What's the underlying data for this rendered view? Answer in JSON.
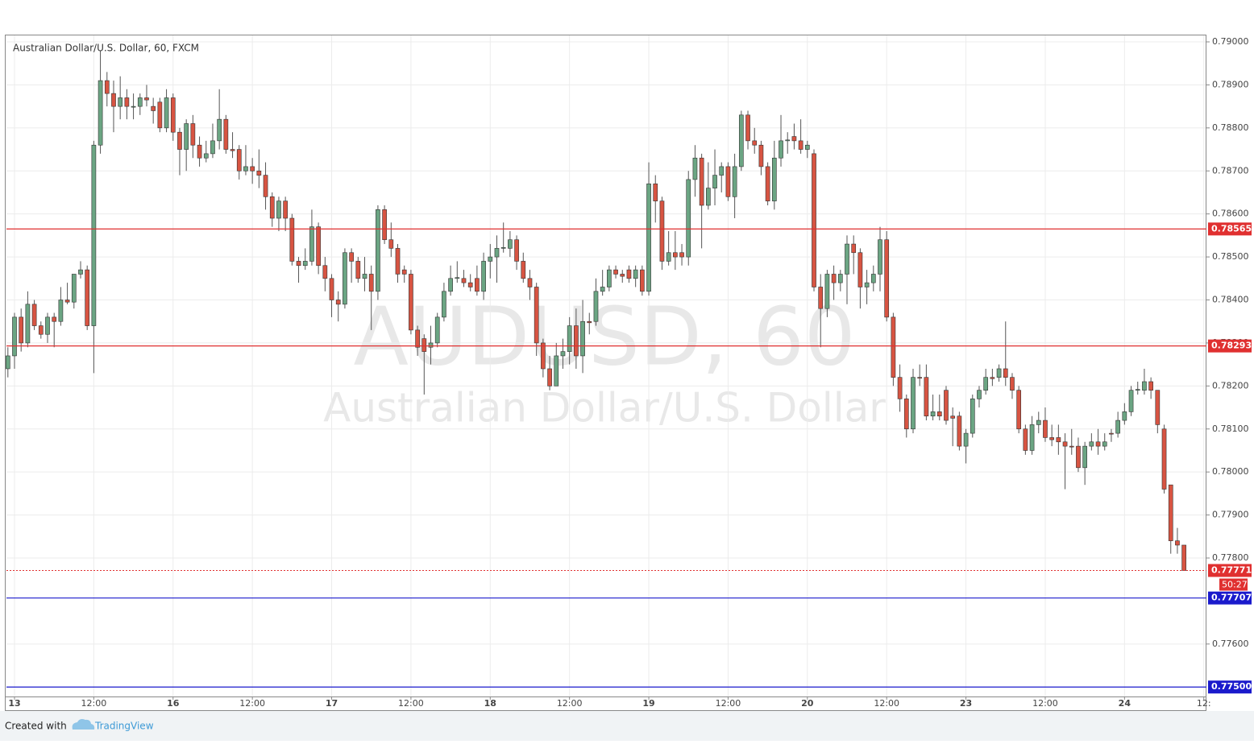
{
  "chart_data": {
    "type": "candlestick",
    "title": "Australian Dollar/U.S. Dollar, 60, FXCM",
    "watermark": {
      "title": "AUDUSD, 60",
      "subtitle": "Australian Dollar/U.S. Dollar"
    },
    "up_color": "#6ba583",
    "down_color": "#d75442",
    "wick_color": "#555555",
    "x": [
      -1,
      0,
      1,
      2,
      3,
      4,
      5,
      6,
      7,
      8,
      9,
      10,
      11,
      12,
      13,
      14,
      15,
      16,
      17,
      18,
      19,
      20,
      21,
      22,
      23,
      24,
      25,
      26,
      27,
      28,
      29,
      30,
      31,
      32,
      33,
      34,
      35,
      36,
      37,
      38,
      39,
      40,
      41,
      42,
      43,
      44,
      45,
      46,
      47,
      48,
      49,
      50,
      51,
      52,
      53,
      54,
      55,
      56,
      57,
      58,
      59,
      60,
      61,
      62,
      63,
      64,
      65,
      66,
      67,
      68,
      69,
      70,
      71,
      72,
      73,
      74,
      75,
      76,
      77,
      78,
      79,
      80,
      81,
      82,
      83,
      84,
      85,
      86,
      87,
      88,
      89,
      90,
      91,
      92,
      93,
      94,
      95,
      96,
      97,
      98,
      99,
      100,
      101,
      102,
      103,
      104,
      105,
      106,
      107,
      108,
      109,
      110,
      111,
      112,
      113,
      114,
      115,
      116,
      117,
      118,
      119,
      120,
      121,
      122,
      123,
      124,
      125,
      126,
      127,
      128,
      129,
      130,
      131,
      132,
      133,
      134,
      135,
      136,
      137,
      138,
      139,
      140,
      141,
      142,
      143,
      144,
      145,
      146,
      147,
      148,
      149,
      150,
      151,
      152,
      153,
      154,
      155,
      156,
      157,
      158,
      159,
      160,
      161,
      162,
      163,
      164,
      165,
      166,
      167,
      168,
      169,
      170,
      171,
      172,
      173,
      174,
      175,
      176,
      177
    ],
    "open": [
      0.7824,
      0.7827,
      0.7836,
      0.783,
      0.7839,
      0.7834,
      0.7832,
      0.7836,
      0.7835,
      0.784,
      0.78395,
      0.7846,
      0.7847,
      0.7834,
      0.7876,
      0.7891,
      0.7888,
      0.7885,
      0.7887,
      0.7885,
      0.7885,
      0.7887,
      0.7885,
      0.7886,
      0.788,
      0.7887,
      0.7879,
      0.7875,
      0.7881,
      0.7876,
      0.7873,
      0.7874,
      0.7877,
      0.7882,
      0.7875,
      0.7875,
      0.787,
      0.7871,
      0.787,
      0.7869,
      0.7864,
      0.7859,
      0.7863,
      0.7859,
      0.7849,
      0.7848,
      0.7849,
      0.7857,
      0.7848,
      0.7845,
      0.784,
      0.7839,
      0.7851,
      0.7849,
      0.7845,
      0.7846,
      0.7842,
      0.7861,
      0.7854,
      0.7852,
      0.7847,
      0.7846,
      0.7833,
      0.7831,
      0.7829,
      0.783,
      0.7836,
      0.7842,
      0.7845,
      0.7845,
      0.7844,
      0.7845,
      0.7842,
      0.7849,
      0.785,
      0.7852,
      0.7852,
      0.7854,
      0.7849,
      0.7845,
      0.7843,
      0.783,
      0.7824,
      0.782,
      0.7827,
      0.7828,
      0.7834,
      0.7827,
      0.7835,
      0.7835,
      0.7842,
      0.7843,
      0.7847,
      0.7846,
      0.7847,
      0.7845,
      0.7847,
      0.7842,
      0.7867,
      0.7863,
      0.7849,
      0.7851,
      0.7851,
      0.785,
      0.7868,
      0.7873,
      0.7862,
      0.7866,
      0.7869,
      0.7871,
      0.7864,
      0.7871,
      0.7883,
      0.7877,
      0.7876,
      0.7871,
      0.7863,
      0.7873,
      0.7877,
      0.7878,
      0.7877,
      0.7875,
      0.7874,
      0.7843,
      0.7838,
      0.7846,
      0.7844,
      0.7846,
      0.7853,
      0.7851,
      0.7843,
      0.7844,
      0.7846,
      0.7854,
      0.7836,
      0.7822,
      0.7817,
      0.781,
      0.7822,
      0.7822,
      0.7813,
      0.7814,
      0.7819,
      0.7813,
      0.7813,
      0.7806,
      0.7809,
      0.7817,
      0.7819,
      0.7822,
      0.7822,
      0.7824,
      0.7822,
      0.7819,
      0.781,
      0.7805,
      0.7811,
      0.7812,
      0.7808,
      0.7808,
      0.7807,
      0.7806,
      0.7806,
      0.7801,
      0.7806,
      0.7807,
      0.7806,
      0.7809,
      0.7809,
      0.7812,
      0.7814,
      0.7819,
      0.7819,
      0.7821,
      0.7819,
      0.781,
      0.7797,
      0.7784,
      0.7783
    ],
    "high": [
      0.7829,
      0.7837,
      0.7838,
      0.7842,
      0.784,
      0.7835,
      0.7837,
      0.7837,
      0.7843,
      0.7844,
      0.7846,
      0.7849,
      0.7848,
      0.7877,
      0.7898,
      0.7893,
      0.7891,
      0.7892,
      0.7889,
      0.7888,
      0.7888,
      0.789,
      0.7887,
      0.7887,
      0.7889,
      0.7888,
      0.788,
      0.7882,
      0.7883,
      0.7878,
      0.7877,
      0.7881,
      0.7889,
      0.7883,
      0.7879,
      0.7876,
      0.7876,
      0.7873,
      0.7875,
      0.7872,
      0.7865,
      0.7864,
      0.7864,
      0.786,
      0.785,
      0.7852,
      0.7861,
      0.7858,
      0.785,
      0.7846,
      0.7842,
      0.7852,
      0.7852,
      0.785,
      0.785,
      0.7848,
      0.7862,
      0.7862,
      0.7858,
      0.7853,
      0.7848,
      0.7847,
      0.7834,
      0.7832,
      0.7834,
      0.7837,
      0.7844,
      0.7848,
      0.7849,
      0.7847,
      0.7846,
      0.7848,
      0.7851,
      0.7853,
      0.7855,
      0.7858,
      0.7856,
      0.7855,
      0.7851,
      0.7847,
      0.7844,
      0.7831,
      0.7827,
      0.783,
      0.7831,
      0.7836,
      0.7838,
      0.784,
      0.7837,
      0.7845,
      0.7847,
      0.7848,
      0.7848,
      0.7847,
      0.7848,
      0.7848,
      0.7848,
      0.7872,
      0.7869,
      0.7864,
      0.7856,
      0.7856,
      0.7853,
      0.787,
      0.7876,
      0.7874,
      0.7872,
      0.7875,
      0.7872,
      0.7872,
      0.7874,
      0.7884,
      0.7884,
      0.788,
      0.7877,
      0.7872,
      0.7877,
      0.7883,
      0.7879,
      0.7881,
      0.7882,
      0.7877,
      0.7875,
      0.7846,
      0.7847,
      0.7848,
      0.7847,
      0.7855,
      0.7855,
      0.7852,
      0.7847,
      0.7848,
      0.7857,
      0.7856,
      0.7837,
      0.7825,
      0.7818,
      0.7824,
      0.7825,
      0.7825,
      0.7818,
      0.7818,
      0.782,
      0.7815,
      0.7814,
      0.781,
      0.7818,
      0.782,
      0.7824,
      0.7824,
      0.7825,
      0.7835,
      0.7823,
      0.782,
      0.7811,
      0.7813,
      0.7814,
      0.7815,
      0.7811,
      0.7811,
      0.7809,
      0.781,
      0.7808,
      0.7807,
      0.7809,
      0.781,
      0.7809,
      0.781,
      0.7814,
      0.7816,
      0.782,
      0.7821,
      0.7824,
      0.7822,
      0.7819,
      0.7811,
      0.7797,
      0.7787,
      0.7783
    ],
    "low": [
      0.7822,
      0.7824,
      0.7828,
      0.7829,
      0.7833,
      0.7831,
      0.783,
      0.7829,
      0.7834,
      0.7839,
      0.7838,
      0.7845,
      0.7833,
      0.7823,
      0.7874,
      0.7885,
      0.7879,
      0.7882,
      0.7882,
      0.7882,
      0.7883,
      0.7885,
      0.7881,
      0.7879,
      0.7879,
      0.7877,
      0.7869,
      0.787,
      0.7873,
      0.7871,
      0.7872,
      0.7873,
      0.7875,
      0.7874,
      0.7873,
      0.7868,
      0.7869,
      0.7867,
      0.7866,
      0.7861,
      0.7857,
      0.7856,
      0.7856,
      0.7848,
      0.7844,
      0.7847,
      0.7848,
      0.7846,
      0.7842,
      0.7836,
      0.7835,
      0.7838,
      0.7844,
      0.7844,
      0.7842,
      0.7833,
      0.784,
      0.7853,
      0.785,
      0.7844,
      0.7844,
      0.7832,
      0.7827,
      0.7818,
      0.7825,
      0.7829,
      0.7835,
      0.7841,
      0.7844,
      0.7843,
      0.7842,
      0.7841,
      0.784,
      0.7845,
      0.7844,
      0.7851,
      0.785,
      0.7847,
      0.7844,
      0.784,
      0.7827,
      0.7822,
      0.7819,
      0.782,
      0.7824,
      0.7825,
      0.7824,
      0.7823,
      0.7832,
      0.7834,
      0.7841,
      0.7842,
      0.7845,
      0.7844,
      0.7844,
      0.7843,
      0.7841,
      0.7841,
      0.7858,
      0.7847,
      0.7848,
      0.7847,
      0.7848,
      0.7848,
      0.7864,
      0.7852,
      0.7861,
      0.7862,
      0.7865,
      0.7863,
      0.7859,
      0.787,
      0.7875,
      0.7874,
      0.7869,
      0.7862,
      0.7861,
      0.7871,
      0.7874,
      0.7875,
      0.7874,
      0.7873,
      0.7842,
      0.7829,
      0.7836,
      0.784,
      0.7842,
      0.7839,
      0.7846,
      0.7838,
      0.7839,
      0.7842,
      0.7842,
      0.7835,
      0.782,
      0.7814,
      0.7808,
      0.7809,
      0.782,
      0.7812,
      0.7812,
      0.7812,
      0.7811,
      0.7806,
      0.7805,
      0.7802,
      0.7808,
      0.7815,
      0.7818,
      0.782,
      0.7821,
      0.782,
      0.7817,
      0.7809,
      0.7804,
      0.7804,
      0.7809,
      0.7807,
      0.7806,
      0.7804,
      0.7796,
      0.7804,
      0.78,
      0.7797,
      0.7805,
      0.7804,
      0.7805,
      0.7807,
      0.7808,
      0.7811,
      0.7813,
      0.7818,
      0.7818,
      0.7817,
      0.7809,
      0.7795,
      0.7781,
      0.7781,
      0.7777
    ],
    "close": [
      0.7827,
      0.7836,
      0.783,
      0.7839,
      0.7834,
      0.7832,
      0.7836,
      0.7835,
      0.784,
      0.78395,
      0.7846,
      0.7847,
      0.7834,
      0.7876,
      0.7891,
      0.7888,
      0.7885,
      0.7887,
      0.7885,
      0.7885,
      0.7887,
      0.78865,
      0.7884,
      0.788,
      0.7887,
      0.7879,
      0.7875,
      0.7881,
      0.7876,
      0.7873,
      0.7874,
      0.7877,
      0.7882,
      0.7875,
      0.78747,
      0.787,
      0.7871,
      0.787,
      0.7869,
      0.7864,
      0.7859,
      0.7863,
      0.7859,
      0.7849,
      0.7848,
      0.7849,
      0.7857,
      0.7848,
      0.7845,
      0.784,
      0.7839,
      0.7851,
      0.7849,
      0.7845,
      0.7846,
      0.7842,
      0.7861,
      0.7854,
      0.7852,
      0.7846,
      0.7846,
      0.7833,
      0.7829,
      0.7828,
      0.783,
      0.7836,
      0.7842,
      0.7845,
      0.78452,
      0.7844,
      0.7843,
      0.7842,
      0.7849,
      0.785,
      0.7852,
      0.78522,
      0.7854,
      0.7849,
      0.7845,
      0.7843,
      0.783,
      0.7824,
      0.782,
      0.7827,
      0.7828,
      0.7834,
      0.7827,
      0.7835,
      0.78347,
      0.7842,
      0.7843,
      0.7847,
      0.7846,
      0.78455,
      0.7845,
      0.7847,
      0.7842,
      0.7867,
      0.7863,
      0.7849,
      0.7851,
      0.785,
      0.785,
      0.7868,
      0.7873,
      0.7862,
      0.7866,
      0.7869,
      0.7871,
      0.7864,
      0.7871,
      0.7883,
      0.7877,
      0.7876,
      0.7871,
      0.7863,
      0.7873,
      0.7877,
      0.78772,
      0.7877,
      0.7875,
      0.7876,
      0.7843,
      0.7838,
      0.7846,
      0.7844,
      0.7846,
      0.7853,
      0.7851,
      0.7843,
      0.7844,
      0.7846,
      0.7854,
      0.7836,
      0.7822,
      0.7817,
      0.781,
      0.7822,
      0.78218,
      0.7813,
      0.7814,
      0.7813,
      0.7812,
      0.78125,
      0.7806,
      0.7809,
      0.7817,
      0.7819,
      0.7822,
      0.78217,
      0.7824,
      0.7822,
      0.7819,
      0.781,
      0.7805,
      0.7811,
      0.7812,
      0.7808,
      0.78075,
      0.7807,
      0.7806,
      0.78058,
      0.7801,
      0.7806,
      0.7807,
      0.7806,
      0.7807,
      0.78088,
      0.7812,
      0.7814,
      0.7819,
      0.78192,
      0.7821,
      0.7819,
      0.7811,
      0.7796,
      0.7784,
      0.7783,
      0.77771
    ],
    "xlim": [
      -1.22,
      180.4
    ],
    "ylim": [
      0.77478,
      0.79015
    ],
    "xticks": [
      {
        "value": 0,
        "label": "13"
      },
      {
        "value": 12,
        "label": "12:00"
      },
      {
        "value": 24,
        "label": "16"
      },
      {
        "value": 36,
        "label": "12:00"
      },
      {
        "value": 48,
        "label": "17"
      },
      {
        "value": 60,
        "label": "12:00"
      },
      {
        "value": 72,
        "label": "18"
      },
      {
        "value": 84,
        "label": "12:00"
      },
      {
        "value": 96,
        "label": "19"
      },
      {
        "value": 108,
        "label": "12:00"
      },
      {
        "value": 120,
        "label": "20"
      },
      {
        "value": 132,
        "label": "12:00"
      },
      {
        "value": 144,
        "label": "23"
      },
      {
        "value": 156,
        "label": "12:00"
      },
      {
        "value": 168,
        "label": "24"
      },
      {
        "value": 180,
        "label": "12:"
      }
    ],
    "yticks": [
      {
        "value": 0.776,
        "label": "0.77600"
      },
      {
        "value": 0.778,
        "label": "0.77800"
      },
      {
        "value": 0.779,
        "label": "0.77900"
      },
      {
        "value": 0.78,
        "label": "0.78000"
      },
      {
        "value": 0.781,
        "label": "0.78100"
      },
      {
        "value": 0.782,
        "label": "0.78200"
      },
      {
        "value": 0.783,
        "label": "0.78300"
      },
      {
        "value": 0.784,
        "label": "0.78400"
      },
      {
        "value": 0.785,
        "label": "0.78500"
      },
      {
        "value": 0.786,
        "label": "0.78600"
      },
      {
        "value": 0.787,
        "label": "0.78700"
      },
      {
        "value": 0.788,
        "label": "0.78800"
      },
      {
        "value": 0.789,
        "label": "0.78900"
      },
      {
        "value": 0.79,
        "label": "0.79000"
      }
    ],
    "grid": true,
    "levels": [
      {
        "value": 0.78565,
        "label": "0.78565",
        "color": "#e03030"
      },
      {
        "value": 0.78293,
        "label": "0.78293",
        "color": "#e03030"
      },
      {
        "value": 0.77707,
        "label": "0.77707",
        "color": "#1a1acc"
      },
      {
        "value": 0.775,
        "label": "0.77500",
        "color": "#1a1acc"
      }
    ],
    "last_price": {
      "value": 0.77771,
      "label": "0.77771",
      "color": "#e03030",
      "countdown": "50:27"
    }
  },
  "footer": {
    "created": "Created with",
    "brand": "TradingView"
  }
}
